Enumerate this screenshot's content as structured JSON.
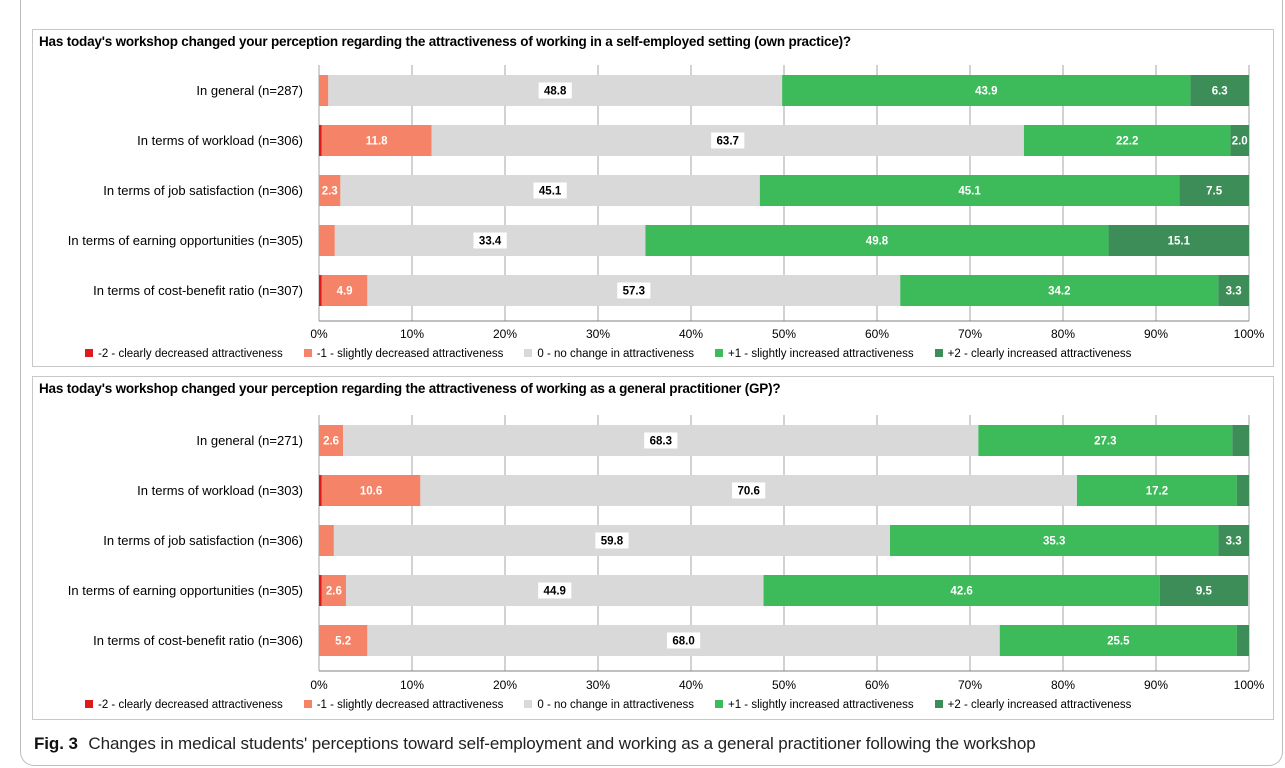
{
  "colors": {
    "minus2": "#e0191b",
    "minus1": "#f58367",
    "zero": "#d9d9d9",
    "plus1": "#3dba5a",
    "plus2": "#3c8d57",
    "grid": "#a6a6a6"
  },
  "legend": [
    {
      "label": "-2 - clearly decreased attractiveness",
      "color": "#e0191b"
    },
    {
      "label": "-1 - slightly decreased attractiveness",
      "color": "#f58367"
    },
    {
      "label": "0 - no change in attractiveness",
      "color": "#d9d9d9"
    },
    {
      "label": "+1 - slightly increased attractiveness",
      "color": "#3dba5a"
    },
    {
      "label": "+2 - clearly increased attractiveness",
      "color": "#3c8d57"
    }
  ],
  "x_ticks": [
    "0%",
    "10%",
    "20%",
    "30%",
    "40%",
    "50%",
    "60%",
    "70%",
    "80%",
    "90%",
    "100%"
  ],
  "chart_data": [
    {
      "type": "bar",
      "stacked": true,
      "orientation": "horizontal",
      "title": "Has today's workshop changed your perception regarding the attractiveness of working in a self-employed setting (own practice)?",
      "xlim": [
        0,
        100
      ],
      "legend_position": "bottom",
      "grid": true,
      "categories": [
        "In general (n=287)",
        "In terms of workload (n=306)",
        "In terms of job satisfaction (n=306)",
        "In terms of earning opportunities (n=305)",
        "In terms of cost-benefit ratio (n=307)"
      ],
      "series": [
        {
          "name": "-2 - clearly decreased attractiveness",
          "values": [
            0.0,
            0.3,
            0.0,
            0.0,
            0.3
          ]
        },
        {
          "name": "-1 - slightly decreased attractiveness",
          "values": [
            1.0,
            11.8,
            2.3,
            1.7,
            4.9
          ]
        },
        {
          "name": "0 - no change in attractiveness",
          "values": [
            48.8,
            63.7,
            45.1,
            33.4,
            57.3
          ]
        },
        {
          "name": "+1 - slightly increased attractiveness",
          "values": [
            43.9,
            22.2,
            45.1,
            49.8,
            34.2
          ]
        },
        {
          "name": "+2 - clearly increased attractiveness",
          "values": [
            6.3,
            2.0,
            7.5,
            15.1,
            3.3
          ]
        }
      ],
      "labels": [
        [
          "",
          "",
          "48.8",
          "43.9",
          "6.3"
        ],
        [
          "",
          "11.8",
          "63.7",
          "22.2",
          "2.0"
        ],
        [
          "",
          "2.3",
          "45.1",
          "45.1",
          "7.5"
        ],
        [
          "",
          "",
          "33.4",
          "49.8",
          "15.1"
        ],
        [
          "",
          "4.9",
          "57.3",
          "34.2",
          "3.3"
        ]
      ]
    },
    {
      "type": "bar",
      "stacked": true,
      "orientation": "horizontal",
      "title": "Has today's workshop changed your perception regarding the attractiveness of working as a general practitioner (GP)?",
      "xlim": [
        0,
        100
      ],
      "legend_position": "bottom",
      "grid": true,
      "categories": [
        "In general (n=271)",
        "In terms of workload (n=303)",
        "In terms of job satisfaction (n=306)",
        "In terms of earning opportunities (n=305)",
        "In terms of cost-benefit ratio (n=306)"
      ],
      "series": [
        {
          "name": "-2 - clearly decreased attractiveness",
          "values": [
            0.0,
            0.3,
            0.0,
            0.3,
            0.0
          ]
        },
        {
          "name": "-1 - slightly decreased attractiveness",
          "values": [
            2.6,
            10.6,
            1.6,
            2.6,
            5.2
          ]
        },
        {
          "name": "0 - no change in attractiveness",
          "values": [
            68.3,
            70.6,
            59.8,
            44.9,
            68.0
          ]
        },
        {
          "name": "+1 - slightly increased attractiveness",
          "values": [
            27.3,
            17.2,
            35.3,
            42.6,
            25.5
          ]
        },
        {
          "name": "+2 - clearly increased attractiveness",
          "values": [
            1.8,
            1.3,
            3.3,
            9.5,
            1.3
          ]
        }
      ],
      "labels": [
        [
          "",
          "2.6",
          "68.3",
          "27.3",
          ""
        ],
        [
          "",
          "10.6",
          "70.6",
          "17.2",
          ""
        ],
        [
          "",
          "",
          "59.8",
          "35.3",
          "3.3"
        ],
        [
          "",
          "2.6",
          "44.9",
          "42.6",
          "9.5"
        ],
        [
          "",
          "5.2",
          "68.0",
          "25.5",
          ""
        ]
      ]
    }
  ],
  "caption": {
    "fig": "Fig. 3",
    "text": "Changes in medical students' perceptions toward self-employment and working as a general practitioner following the workshop"
  }
}
